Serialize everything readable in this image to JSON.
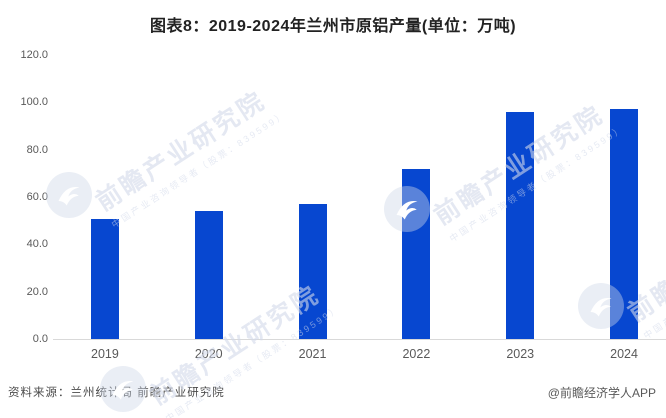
{
  "title": "图表8：2019-2024年兰州市原铝产量(单位：万吨)",
  "footer": {
    "source": "资料来源：兰州统计局 前瞻产业研究院",
    "credit": "@前瞻经济学人APP"
  },
  "watermark": {
    "main": "前瞻产业研究院",
    "sub": "中国产业咨询领导者（股票：839599）",
    "logo_icon": "qianzhan-swoosh-logo"
  },
  "colors": {
    "bar": "#0747d0",
    "axis_line": "#d9d9d9",
    "tick_text": "#595959",
    "title_text": "#222222"
  },
  "chart_data": {
    "type": "bar",
    "title": "图表8：2019-2024年兰州市原铝产量(单位：万吨)",
    "unit": "万吨",
    "categories": [
      "2019",
      "2020",
      "2021",
      "2022",
      "2023",
      "2024"
    ],
    "series": [
      {
        "name": "原铝产量(万吨)",
        "values": [
          50.9,
          54.3,
          56.9,
          71.9,
          96.0,
          97.4
        ]
      }
    ],
    "xlabel": "",
    "ylabel": "",
    "ylim": [
      0,
      120
    ],
    "ytick_step": 20,
    "ytick_labels": [
      "0.0",
      "20.0",
      "40.0",
      "60.0",
      "80.0",
      "100.0",
      "120.0"
    ],
    "grid": false,
    "legend_position": "none",
    "bar_color": "#0747d0"
  }
}
